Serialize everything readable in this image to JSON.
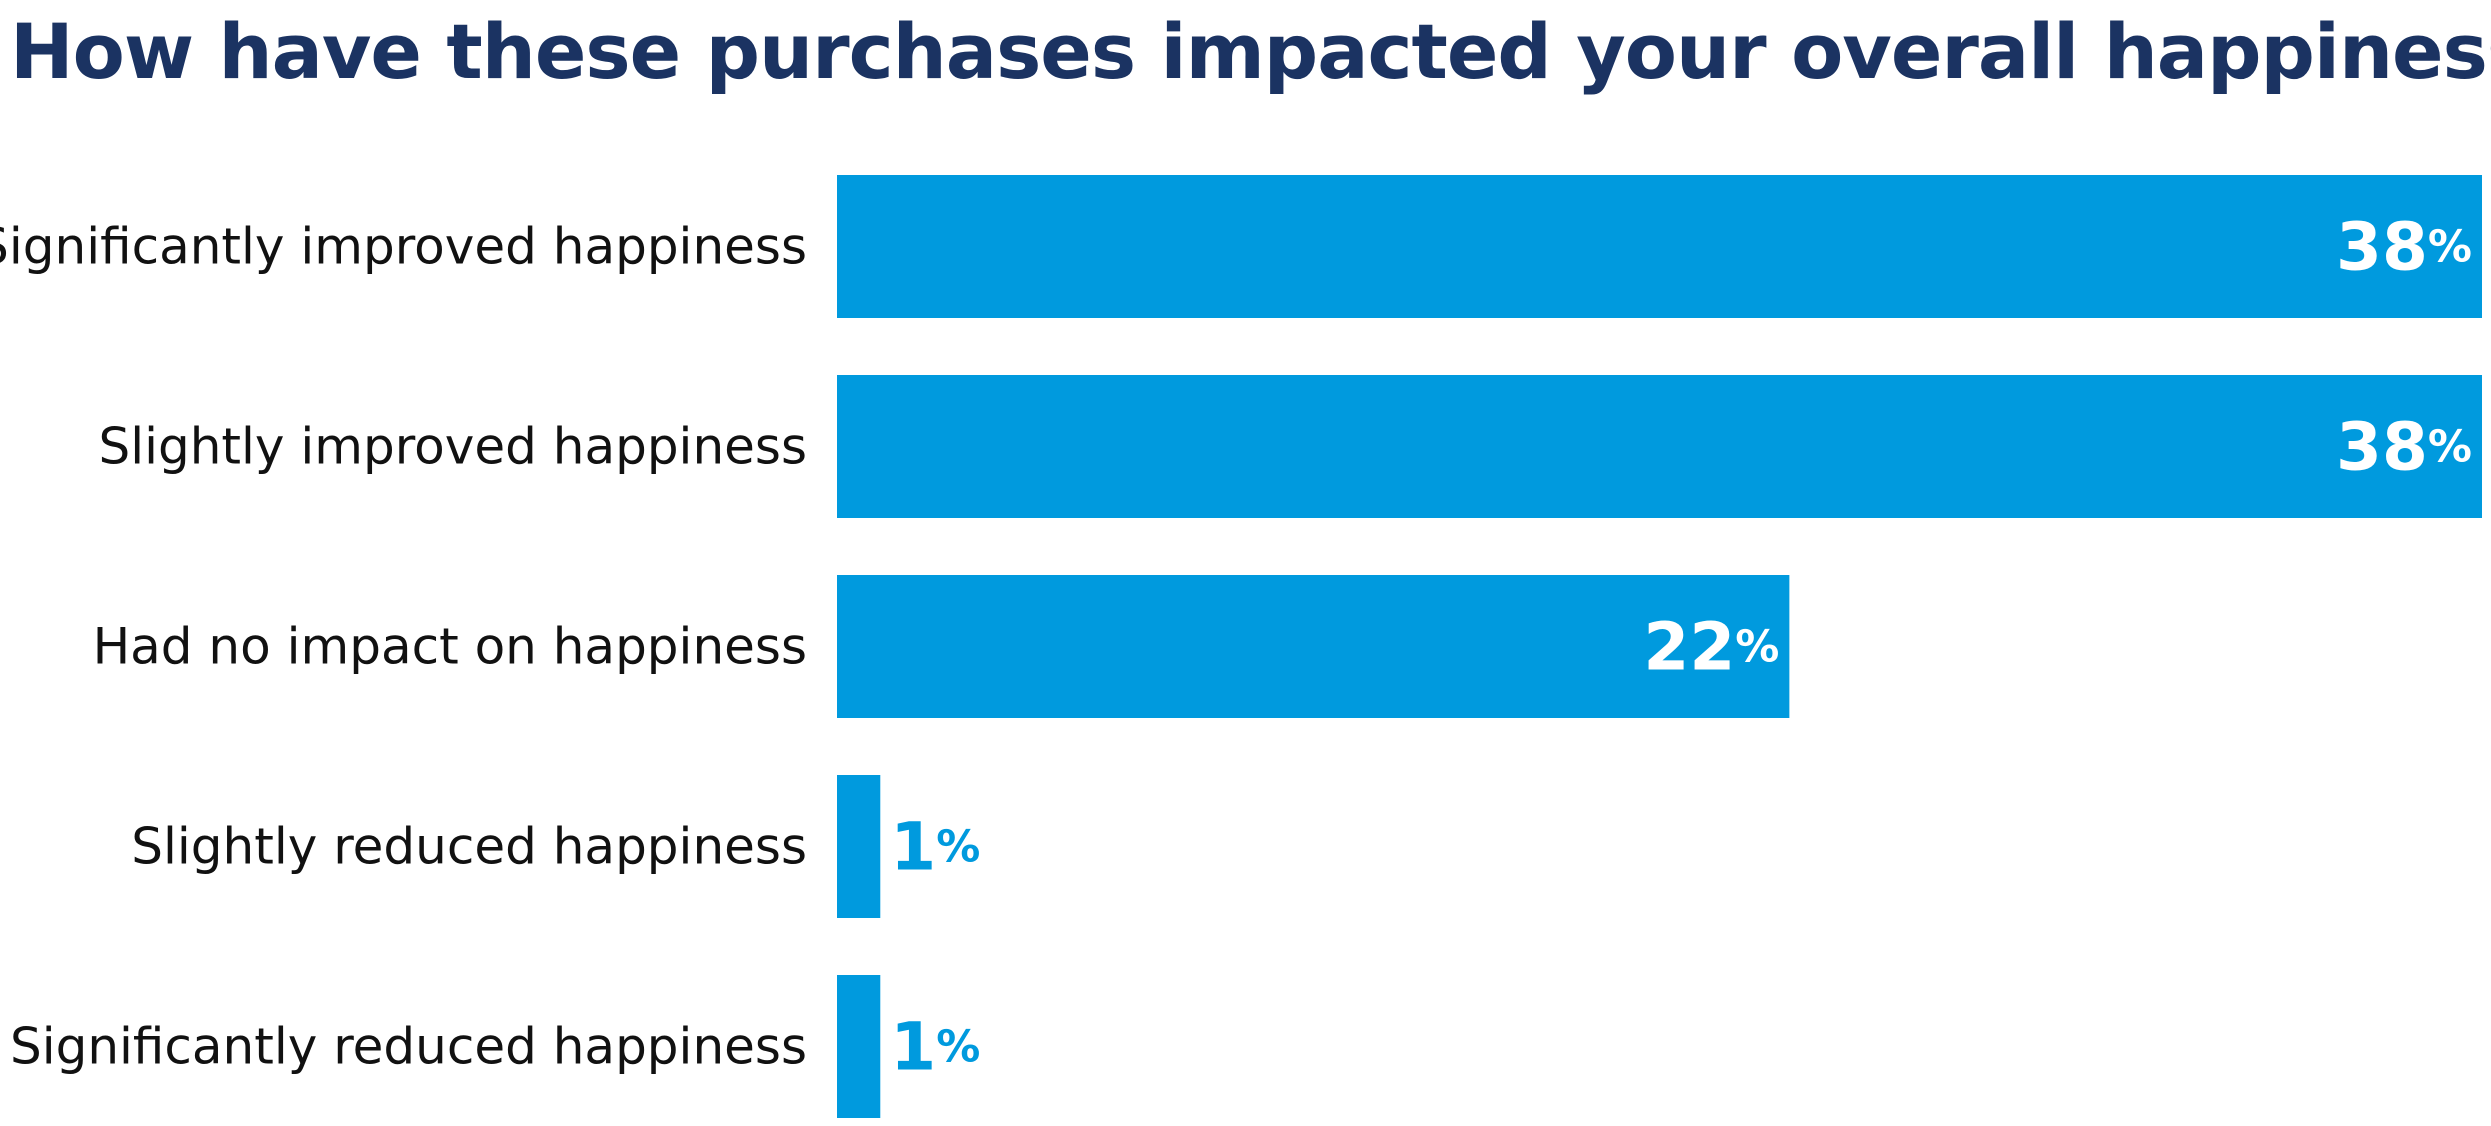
{
  "colors": {
    "bar": "#009ADE",
    "title": "#1B3362",
    "label_inside": "#FFFFFF",
    "label_outside": "#009ADE"
  },
  "chart_data": {
    "type": "bar",
    "orientation": "horizontal",
    "title": "How have these purchases impacted your overall happiness?",
    "categories": [
      "Significantly improved happiness",
      "Slightly improved happiness",
      "Had no impact on happiness",
      "Slightly reduced happiness",
      "Significantly reduced happiness"
    ],
    "values": [
      38,
      38,
      22,
      1,
      1
    ],
    "value_suffix": "%",
    "xlim": [
      0,
      38
    ],
    "grid": false,
    "legend": "none"
  }
}
